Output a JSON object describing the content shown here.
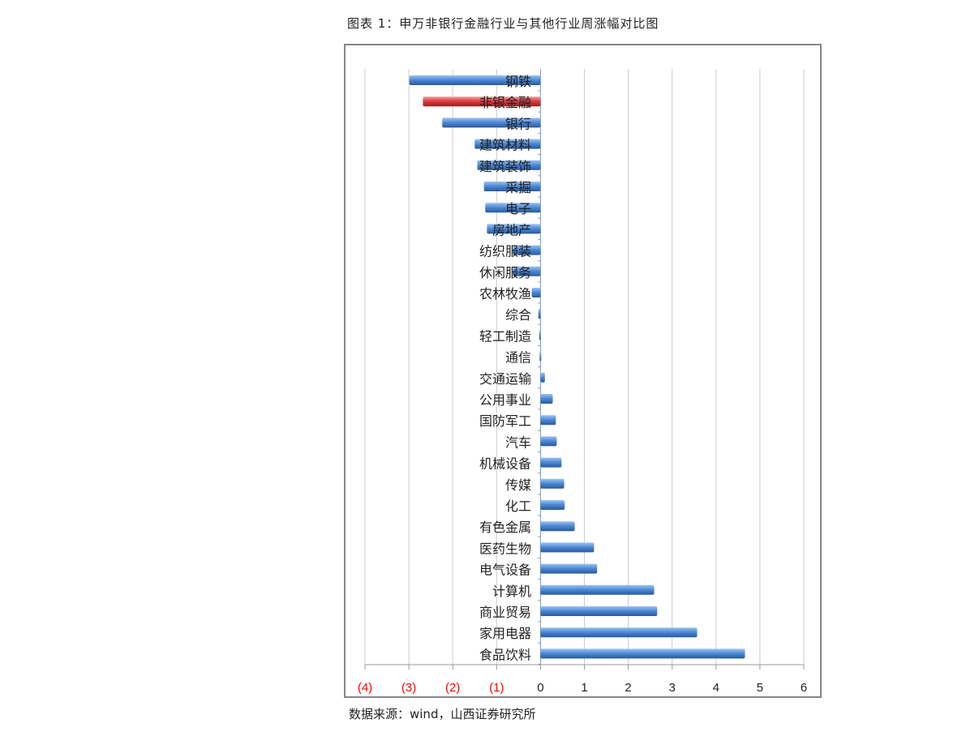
{
  "title": "图表 1：申万非银行金融行业与其他行业周涨幅对比图",
  "source": "数据来源：wind，山西证券研究所",
  "chart_data": {
    "type": "bar",
    "orientation": "horizontal",
    "categories": [
      "钢铁",
      "非银金融",
      "银行",
      "建筑材料",
      "建筑装饰",
      "采掘",
      "电子",
      "房地产",
      "纺织服装",
      "休闲服务",
      "农林牧渔",
      "综合",
      "轻工制造",
      "通信",
      "交通运输",
      "公用事业",
      "国防军工",
      "汽车",
      "机械设备",
      "传媒",
      "化工",
      "有色金属",
      "医药生物",
      "电气设备",
      "计算机",
      "商业贸易",
      "家用电器",
      "食品饮料"
    ],
    "values": [
      -2.99,
      -2.68,
      -2.24,
      -1.5,
      -1.44,
      -1.29,
      -1.26,
      -1.22,
      -0.63,
      -0.63,
      -0.2,
      -0.05,
      -0.03,
      -0.02,
      0.1,
      0.28,
      0.35,
      0.37,
      0.48,
      0.54,
      0.55,
      0.78,
      1.22,
      1.29,
      2.59,
      2.66,
      3.57,
      4.66
    ],
    "highlight": "非银金融",
    "colors": {
      "default": "#4a86d4",
      "highlight": "#d9393b",
      "negative_tick_labels": "#ff0000"
    },
    "xlim": [
      -4,
      6
    ],
    "xticks": [
      "(4)",
      "(3)",
      "(2)",
      "(1)",
      "0",
      "1",
      "2",
      "3",
      "4",
      "5",
      "6"
    ],
    "grid": true
  }
}
